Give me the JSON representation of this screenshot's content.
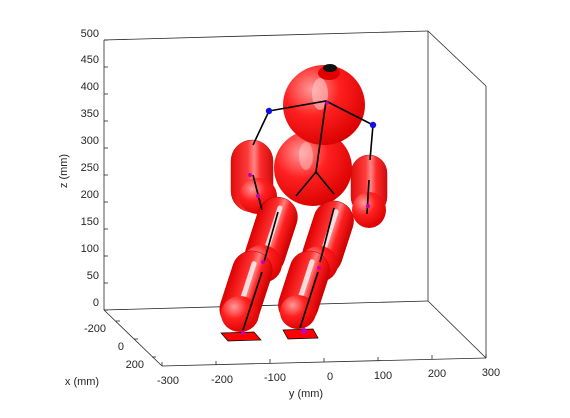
{
  "chart_data": {
    "type": "3d-scatter",
    "zlabel": "z (mm)",
    "xlabel": "x (mm)",
    "ylabel": "y (mm)",
    "z_ticks": [
      "0",
      "50",
      "100",
      "150",
      "200",
      "250",
      "300",
      "350",
      "400",
      "450",
      "500"
    ],
    "x_ticks": [
      "-200",
      "0",
      "200"
    ],
    "y_ticks": [
      "-300",
      "-200",
      "-100",
      "0",
      "100",
      "200",
      "300"
    ],
    "zlim": [
      0,
      500
    ],
    "xlim": [
      -300,
      300
    ],
    "ylim": [
      -300,
      300
    ],
    "grid": false,
    "colors": {
      "body": "#ff1a1a",
      "body_edge": "#c00000",
      "highlight": "#f2f2f2",
      "joint": "#1010e0",
      "marker": "#c000c0",
      "link": "#000000",
      "foot": "#ff0000",
      "axis": "#262626"
    }
  }
}
